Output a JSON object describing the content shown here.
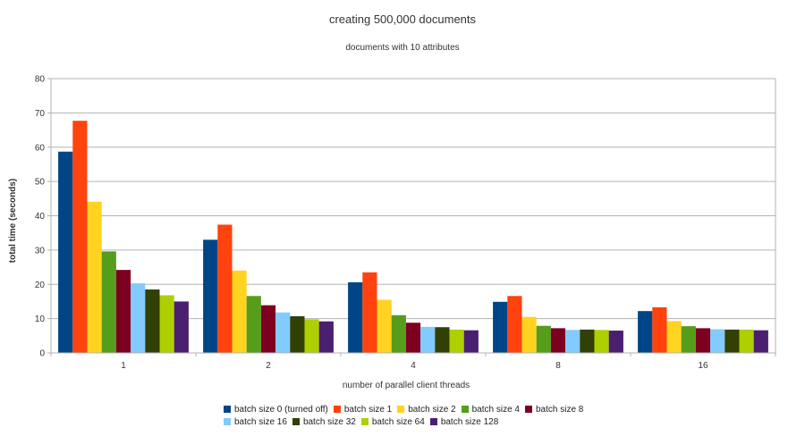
{
  "chart_data": {
    "type": "bar",
    "title": "creating 500,000 documents",
    "subtitle": "documents with 10 attributes",
    "xlabel": "number of parallel client threads",
    "ylabel": "total time (seconds)",
    "categories": [
      "1",
      "2",
      "4",
      "8",
      "16"
    ],
    "ylim": [
      0,
      80
    ],
    "yticks": [
      0,
      10,
      20,
      30,
      40,
      50,
      60,
      70,
      80
    ],
    "grid": true,
    "legend_position": "bottom",
    "series": [
      {
        "name": "batch size 0 (turned off)",
        "color": "#004586",
        "values": [
          58.7,
          33.0,
          20.6,
          14.9,
          12.2
        ]
      },
      {
        "name": "batch size 1",
        "color": "#ff420e",
        "values": [
          67.7,
          37.4,
          23.5,
          16.6,
          13.3
        ]
      },
      {
        "name": "batch size 2",
        "color": "#ffd320",
        "values": [
          44.1,
          24.0,
          15.5,
          10.5,
          9.3
        ]
      },
      {
        "name": "batch size 4",
        "color": "#579d1c",
        "values": [
          29.6,
          16.6,
          11.0,
          7.9,
          7.8
        ]
      },
      {
        "name": "batch size 8",
        "color": "#7e0021",
        "values": [
          24.2,
          13.9,
          8.8,
          7.2,
          7.2
        ]
      },
      {
        "name": "batch size 16",
        "color": "#83caff",
        "values": [
          20.3,
          11.8,
          7.6,
          6.7,
          6.9
        ]
      },
      {
        "name": "batch size 32",
        "color": "#314004",
        "values": [
          18.5,
          10.7,
          7.5,
          6.8,
          6.8
        ]
      },
      {
        "name": "batch size 64",
        "color": "#aecf00",
        "values": [
          16.8,
          9.8,
          6.8,
          6.7,
          6.8
        ]
      },
      {
        "name": "batch size 128",
        "color": "#4b1f6f",
        "values": [
          15.0,
          9.2,
          6.6,
          6.5,
          6.6
        ]
      }
    ]
  }
}
